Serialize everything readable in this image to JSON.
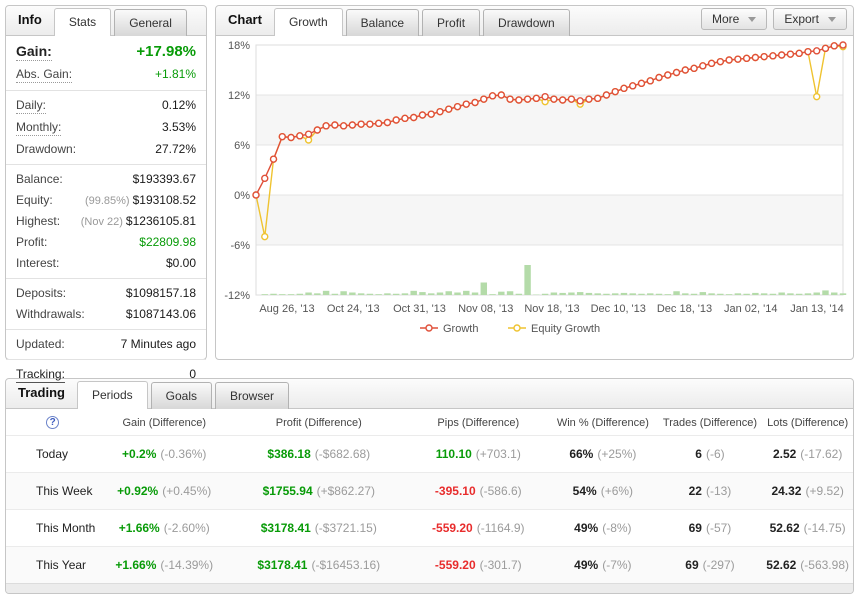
{
  "colors": {
    "positive_green": "#089b08",
    "negative_red": "#e82c2c",
    "growth_line": "#e0503a",
    "equity_line": "#efc330",
    "bar_fill": "#b4dba9"
  },
  "info_panel": {
    "title": "Info",
    "tabs": [
      {
        "label": "Stats"
      },
      {
        "label": "General"
      }
    ],
    "active_tab": "Stats",
    "rows": [
      {
        "label": "Gain:",
        "value": "+17.98%",
        "trend": "up"
      },
      {
        "label": "Abs. Gain:",
        "value": "+1.81%",
        "trend": "up"
      },
      {
        "label": "Daily:",
        "value": "0.12%"
      },
      {
        "label": "Monthly:",
        "value": "3.53%"
      },
      {
        "label": "Drawdown:",
        "value": "27.72%"
      },
      {
        "label": "Balance:",
        "value": "$193393.67"
      },
      {
        "label": "Equity:",
        "prefix": "(99.85%)",
        "value": "$193108.52"
      },
      {
        "label": "Highest:",
        "prefix": "(Nov 22)",
        "value": "$1236105.81"
      },
      {
        "label": "Profit:",
        "value": "$22809.98",
        "trend": "up"
      },
      {
        "label": "Interest:",
        "value": "$0.00"
      },
      {
        "label": "Deposits:",
        "value": "$1098157.18"
      },
      {
        "label": "Withdrawals:",
        "value": "$1087143.06"
      },
      {
        "label": "Updated:",
        "value": "7 Minutes ago"
      },
      {
        "label": "Tracking:",
        "value": "0"
      }
    ]
  },
  "chart_panel": {
    "title": "Chart",
    "tabs": [
      "Growth",
      "Balance",
      "Profit",
      "Drawdown"
    ],
    "active_tab": "Growth",
    "buttons": {
      "more": "More",
      "export": "Export"
    }
  },
  "chart_data": {
    "type": "line",
    "ylim": [
      -12,
      18
    ],
    "yticks": [
      18,
      12,
      6,
      0,
      -6,
      -12
    ],
    "ytick_suffix": "%",
    "bands": [
      [
        6,
        12
      ],
      [
        -6,
        0
      ]
    ],
    "grid": true,
    "legend_position": "bottom",
    "xtick_labels": [
      "Aug 26, '13",
      "Oct 24, '13",
      "Oct 31, '13",
      "Nov 08, '13",
      "Nov 18, '13",
      "Dec 10, '13",
      "Dec 18, '13",
      "Jan 02, '14",
      "Jan 13, '14"
    ],
    "series": [
      {
        "name": "Growth",
        "color": "#e0503a",
        "values": [
          0.0,
          2.0,
          4.3,
          7.0,
          6.9,
          7.1,
          7.3,
          7.8,
          8.3,
          8.4,
          8.3,
          8.4,
          8.5,
          8.5,
          8.6,
          8.7,
          9.0,
          9.2,
          9.3,
          9.6,
          9.7,
          10.0,
          10.3,
          10.6,
          10.9,
          11.1,
          11.5,
          11.9,
          12.0,
          11.5,
          11.4,
          11.5,
          11.6,
          11.8,
          11.5,
          11.4,
          11.5,
          11.3,
          11.5,
          11.6,
          12.0,
          12.4,
          12.8,
          13.1,
          13.4,
          13.7,
          14.1,
          14.4,
          14.7,
          15.0,
          15.2,
          15.5,
          15.8,
          16.0,
          16.2,
          16.3,
          16.4,
          16.5,
          16.6,
          16.7,
          16.8,
          16.9,
          17.0,
          17.2,
          17.3,
          17.6,
          17.9,
          18.0
        ]
      },
      {
        "name": "Equity Growth",
        "color": "#efc330",
        "values": [
          0.0,
          -5.0,
          4.3,
          7.0,
          6.9,
          7.1,
          6.6,
          7.8,
          8.3,
          8.4,
          8.3,
          8.4,
          8.5,
          8.5,
          8.6,
          8.7,
          9.0,
          9.2,
          9.3,
          9.6,
          9.7,
          10.0,
          10.3,
          10.6,
          10.9,
          11.1,
          11.5,
          11.9,
          12.0,
          11.5,
          11.4,
          11.5,
          11.6,
          11.2,
          11.5,
          11.4,
          11.5,
          10.9,
          11.5,
          11.6,
          12.0,
          12.4,
          12.8,
          13.1,
          13.4,
          13.7,
          14.1,
          14.4,
          14.7,
          15.0,
          15.2,
          15.5,
          15.8,
          16.0,
          16.2,
          16.3,
          16.4,
          16.5,
          16.6,
          16.7,
          16.8,
          16.9,
          17.0,
          17.2,
          11.8,
          17.6,
          17.9,
          17.8
        ]
      }
    ],
    "bars": {
      "name": "activity",
      "color": "#b4dba9",
      "values": [
        0,
        0.1,
        0.15,
        0.1,
        0.1,
        0.15,
        0.3,
        0.2,
        0.5,
        0.15,
        0.45,
        0.3,
        0.2,
        0.15,
        0.1,
        0.2,
        0.15,
        0.2,
        0.5,
        0.35,
        0.2,
        0.3,
        0.45,
        0.3,
        0.5,
        0.3,
        1.5,
        0.1,
        0.4,
        0.45,
        0.15,
        3.6,
        0.05,
        0.15,
        0.3,
        0.25,
        0.3,
        0.35,
        0.25,
        0.2,
        0.15,
        0.2,
        0.25,
        0.2,
        0.15,
        0.2,
        0.15,
        0.1,
        0.45,
        0.2,
        0.15,
        0.35,
        0.2,
        0.15,
        0.1,
        0.2,
        0.15,
        0.25,
        0.2,
        0.15,
        0.3,
        0.2,
        0.15,
        0.2,
        0.3,
        0.55,
        0.3,
        0.2
      ]
    }
  },
  "trading_panel": {
    "title": "Trading",
    "tabs": [
      "Periods",
      "Goals",
      "Browser"
    ],
    "active_tab": "Periods",
    "help_icon": "?",
    "columns": [
      "Gain (Difference)",
      "Profit (Difference)",
      "Pips (Difference)",
      "Win % (Difference)",
      "Trades (Difference)",
      "Lots (Difference)"
    ],
    "rows": [
      {
        "period": "Today",
        "cells": [
          {
            "main": "+0.2%",
            "diff": "(-0.36%)",
            "trend": "up"
          },
          {
            "main": "$386.18",
            "diff": "(-$682.68)",
            "trend": "up"
          },
          {
            "main": "110.10",
            "diff": "(+703.1)",
            "trend": "up"
          },
          {
            "main": "66%",
            "diff": "(+25%)",
            "trend": "flat"
          },
          {
            "main": "6",
            "diff": "(-6)",
            "trend": "flat"
          },
          {
            "main": "2.52",
            "diff": "(-17.62)",
            "trend": "flat"
          }
        ]
      },
      {
        "period": "This Week",
        "cells": [
          {
            "main": "+0.92%",
            "diff": "(+0.45%)",
            "trend": "up"
          },
          {
            "main": "$1755.94",
            "diff": "(+$862.27)",
            "trend": "up"
          },
          {
            "main": "-395.10",
            "diff": "(-586.6)",
            "trend": "down"
          },
          {
            "main": "54%",
            "diff": "(+6%)",
            "trend": "flat"
          },
          {
            "main": "22",
            "diff": "(-13)",
            "trend": "flat"
          },
          {
            "main": "24.32",
            "diff": "(+9.52)",
            "trend": "flat"
          }
        ]
      },
      {
        "period": "This Month",
        "cells": [
          {
            "main": "+1.66%",
            "diff": "(-2.60%)",
            "trend": "up"
          },
          {
            "main": "$3178.41",
            "diff": "(-$3721.15)",
            "trend": "up"
          },
          {
            "main": "-559.20",
            "diff": "(-1164.9)",
            "trend": "down"
          },
          {
            "main": "49%",
            "diff": "(-8%)",
            "trend": "flat"
          },
          {
            "main": "69",
            "diff": "(-57)",
            "trend": "flat"
          },
          {
            "main": "52.62",
            "diff": "(-14.75)",
            "trend": "flat"
          }
        ]
      },
      {
        "period": "This Year",
        "cells": [
          {
            "main": "+1.66%",
            "diff": "(-14.39%)",
            "trend": "up"
          },
          {
            "main": "$3178.41",
            "diff": "(-$16453.16)",
            "trend": "up"
          },
          {
            "main": "-559.20",
            "diff": "(-301.7)",
            "trend": "down"
          },
          {
            "main": "49%",
            "diff": "(-7%)",
            "trend": "flat"
          },
          {
            "main": "69",
            "diff": "(-297)",
            "trend": "flat"
          },
          {
            "main": "52.62",
            "diff": "(-563.98)",
            "trend": "flat"
          }
        ]
      }
    ]
  }
}
